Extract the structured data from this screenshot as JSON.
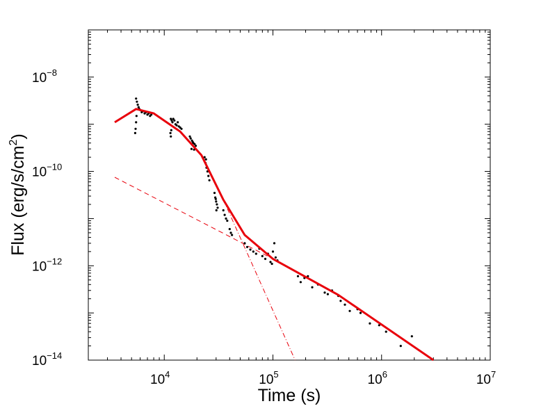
{
  "chart_data": {
    "type": "scatter",
    "xlabel": "Time (s)",
    "ylabel": "Flux (erg/s/cm",
    "ylabel_sup": "2",
    "ylabel_close": ")",
    "xscale": "log",
    "yscale": "log",
    "xlim": [
      2000,
      10000000
    ],
    "ylim": [
      1e-14,
      1e-07
    ],
    "grid": false,
    "x_ticks": [
      {
        "value": 10000,
        "base": "10",
        "exp": "4"
      },
      {
        "value": 100000,
        "base": "10",
        "exp": "5"
      },
      {
        "value": 1000000,
        "base": "10",
        "exp": "6"
      },
      {
        "value": 10000000,
        "base": "10",
        "exp": "7"
      }
    ],
    "y_ticks": [
      {
        "value": 1e-08,
        "base": "10",
        "exp": "−8"
      },
      {
        "value": 1e-10,
        "base": "10",
        "exp": "−10"
      },
      {
        "value": 1e-12,
        "base": "10",
        "exp": "−12"
      },
      {
        "value": 1e-14,
        "base": "10",
        "exp": "−14"
      }
    ],
    "data_points": [
      [
        5500,
        3.5e-09
      ],
      [
        5600,
        3e-09
      ],
      [
        5700,
        2.6e-09
      ],
      [
        5800,
        2.3e-09
      ],
      [
        5900,
        2.1e-09
      ],
      [
        6000,
        2e-09
      ],
      [
        6200,
        1.8e-09
      ],
      [
        6400,
        1.9e-09
      ],
      [
        6600,
        1.7e-09
      ],
      [
        6800,
        1.8e-09
      ],
      [
        7000,
        1.6e-09
      ],
      [
        7200,
        1.7e-09
      ],
      [
        7400,
        1.5e-09
      ],
      [
        7600,
        1.6e-09
      ],
      [
        5400,
        6.5e-10
      ],
      [
        5450,
        8e-10
      ],
      [
        5500,
        1.1e-09
      ],
      [
        5550,
        1.5e-09
      ],
      [
        11500,
        1.3e-09
      ],
      [
        11700,
        1.2e-09
      ],
      [
        11900,
        1.1e-09
      ],
      [
        12100,
        1.3e-09
      ],
      [
        12400,
        1.2e-09
      ],
      [
        12700,
        1e-09
      ],
      [
        13000,
        9.5e-10
      ],
      [
        13300,
        1.1e-09
      ],
      [
        13600,
        9e-10
      ],
      [
        14000,
        8.5e-10
      ],
      [
        14400,
        8e-10
      ],
      [
        11400,
        6.5e-10
      ],
      [
        11500,
        5.5e-10
      ],
      [
        11600,
        7.5e-10
      ],
      [
        17500,
        5e-10
      ],
      [
        18000,
        4.5e-10
      ],
      [
        18500,
        4e-10
      ],
      [
        19000,
        3.8e-10
      ],
      [
        19500,
        3.5e-10
      ],
      [
        17800,
        3e-10
      ],
      [
        18300,
        4.2e-10
      ],
      [
        17200,
        5.5e-10
      ],
      [
        18800,
        2.9e-10
      ],
      [
        23500,
        2e-10
      ],
      [
        24000,
        1.5e-10
      ],
      [
        24500,
        1.2e-10
      ],
      [
        25000,
        1e-10
      ],
      [
        25500,
        8e-11
      ],
      [
        24200,
        1.8e-10
      ],
      [
        26000,
        6.5e-11
      ],
      [
        29000,
        3.5e-11
      ],
      [
        29500,
        2.8e-11
      ],
      [
        30000,
        2.3e-11
      ],
      [
        30500,
        2e-11
      ],
      [
        31000,
        1.7e-11
      ],
      [
        30200,
        1.5e-11
      ],
      [
        29800,
        2.6e-11
      ],
      [
        35000,
        1.5e-11
      ],
      [
        36000,
        1.2e-11
      ],
      [
        37000,
        1e-11
      ],
      [
        38000,
        9e-12
      ],
      [
        40000,
        6e-12
      ],
      [
        41000,
        5e-12
      ],
      [
        42000,
        4.5e-12
      ],
      [
        55000,
        3e-12
      ],
      [
        58000,
        2.5e-12
      ],
      [
        62000,
        2.2e-12
      ],
      [
        66000,
        2e-12
      ],
      [
        70000,
        1.8e-12
      ],
      [
        75000,
        2.3e-12
      ],
      [
        80000,
        1.6e-12
      ],
      [
        85000,
        1.4e-12
      ],
      [
        90000,
        1.8e-12
      ],
      [
        95000,
        1.2e-12
      ],
      [
        100000,
        2e-12
      ],
      [
        103000,
        3e-12
      ],
      [
        106000,
        1.5e-12
      ],
      [
        110000,
        1.3e-12
      ],
      [
        98000,
        1.1e-12
      ],
      [
        170000,
        6e-13
      ],
      [
        180000,
        4.5e-13
      ],
      [
        195000,
        5.5e-13
      ],
      [
        210000,
        6e-13
      ],
      [
        230000,
        3.5e-13
      ],
      [
        260000,
        4e-13
      ],
      [
        300000,
        2.7e-13
      ],
      [
        320000,
        2.5e-13
      ],
      [
        350000,
        3e-13
      ],
      [
        400000,
        2.3e-13
      ],
      [
        420000,
        1.8e-13
      ],
      [
        460000,
        1.5e-13
      ],
      [
        510000,
        1.1e-13
      ],
      [
        600000,
        1.2e-13
      ],
      [
        640000,
        1e-13
      ],
      [
        780000,
        6e-14
      ],
      [
        950000,
        5.5e-14
      ],
      [
        1100000,
        4e-14
      ],
      [
        1500000,
        2e-14
      ],
      [
        1900000,
        3.2e-14
      ]
    ],
    "fit_model": [
      [
        3500,
        1.1e-09
      ],
      [
        5500,
        2.1e-09
      ],
      [
        8000,
        1.7e-09
      ],
      [
        14000,
        7e-10
      ],
      [
        22000,
        2.2e-10
      ],
      [
        35000,
        2.5e-11
      ],
      [
        55000,
        4.5e-12
      ],
      [
        100000,
        1.4e-12
      ],
      [
        400000,
        2.4e-13
      ],
      [
        3000000,
        1e-14
      ]
    ],
    "component_power_law": [
      [
        3500,
        7.5e-11
      ],
      [
        100000,
        1.4e-12
      ]
    ],
    "component_steep_decay": [
      [
        35000,
        2.5e-11
      ],
      [
        160000,
        1e-14
      ]
    ],
    "colors": {
      "data_points": "#000000",
      "fit_model": "#e8000b",
      "components": "#e8000b",
      "axes": "#000000"
    }
  }
}
